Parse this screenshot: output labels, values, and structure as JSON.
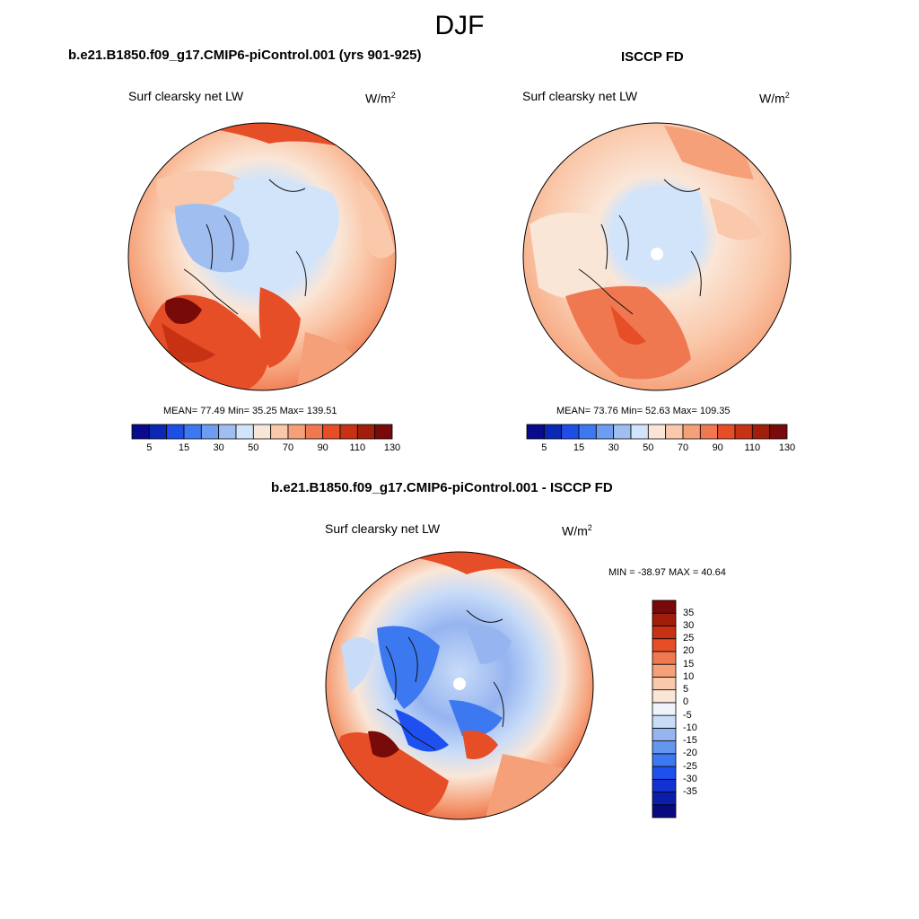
{
  "figure": {
    "title": "DJF"
  },
  "panels": {
    "model": {
      "title": "b.e21.B1850.f09_g17.CMIP6-piControl.001 (yrs 901-925)",
      "variable": "Surf clearsky net LW",
      "units_base": "W/m",
      "units_exp": "2",
      "stats": "MEAN=  77.49  Min=  35.25  Max= 139.51"
    },
    "obs": {
      "title": "ISCCP FD",
      "variable": "Surf clearsky net LW",
      "units_base": "W/m",
      "units_exp": "2",
      "stats": "MEAN=  73.76  Min=  52.63  Max= 109.35"
    },
    "diff": {
      "title": "b.e21.B1850.f09_g17.CMIP6-piControl.001 - ISCCP FD",
      "variable": "Surf clearsky net LW",
      "units_base": "W/m",
      "units_exp": "2",
      "stats": "MIN = -38.97 MAX =  40.64"
    }
  },
  "colorbars": {
    "abs": {
      "colors": [
        "#0a0a8c",
        "#0a28b4",
        "#1e4ee6",
        "#3c78f0",
        "#6e9cf0",
        "#a0bef0",
        "#d2e4fa",
        "#fae6d7",
        "#fac8aa",
        "#f5a078",
        "#f07850",
        "#e64e28",
        "#c83214",
        "#a01e0a",
        "#780a0a"
      ],
      "tick_labels": [
        "5",
        "15",
        "30",
        "50",
        "70",
        "90",
        "110",
        "130"
      ]
    },
    "diff": {
      "colors": [
        "#0a0a80",
        "#0a1eaa",
        "#1432d2",
        "#1e50f0",
        "#3c78f0",
        "#6496f0",
        "#96b4f0",
        "#c8dcf8",
        "#f0f4fa",
        "#fae6d7",
        "#fac8aa",
        "#f5a078",
        "#f07850",
        "#e64e28",
        "#c83214",
        "#a01e0a",
        "#780a0a"
      ],
      "tick_labels": [
        "35",
        "30",
        "25",
        "20",
        "15",
        "10",
        "5",
        "0",
        "-5",
        "-10",
        "-15",
        "-20",
        "-25",
        "-30",
        "-35"
      ]
    }
  }
}
